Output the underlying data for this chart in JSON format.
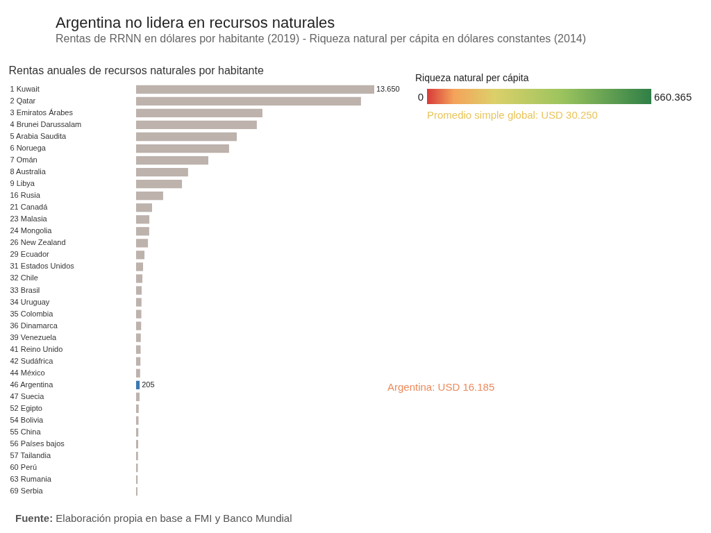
{
  "chart_data": [
    {
      "type": "bar",
      "orientation": "horizontal",
      "title": "Argentina no lidera en recursos naturales",
      "subtitle": "Rentas de RRNN en dólares por habitante (2019) - Riqueza natural per cápita en dólares constantes (2014)",
      "xlabel": "Rentas anuales de recursos naturales por habitante",
      "tick_labels": "y",
      "categories": [
        "1 Kuwait",
        "2 Qatar",
        "3 Emiratos Árabes",
        "4 Brunei Darussalam",
        "5 Arabia Saudita",
        "6 Noruega",
        "7 Omán",
        "8 Australia",
        "9 Libya",
        "16 Rusia",
        "21 Canadá",
        "23 Malasia",
        "24 Mongolia",
        "26 New Zealand",
        "29 Ecuador",
        "31 Estados Unidos",
        "32 Chile",
        "33 Brasil",
        "34 Uruguay",
        "35 Colombia",
        "36 Dinamarca",
        "39 Venezuela",
        "41 Reino Unido",
        "42 Sudáfrica",
        "44 México",
        "46 Argentina",
        "47 Suecia",
        "52 Egipto",
        "54 Bolivia",
        "55 China",
        "56 Países bajos",
        "57 Tailandia",
        "60 Perú",
        "63 Rumania",
        "69 Serbia"
      ],
      "values": [
        13650,
        12890,
        7240,
        6920,
        5770,
        5330,
        4140,
        2980,
        2630,
        1550,
        915,
        760,
        750,
        680,
        480,
        400,
        360,
        320,
        310,
        300,
        290,
        270,
        260,
        250,
        230,
        205,
        200,
        150,
        140,
        130,
        120,
        110,
        100,
        90,
        80
      ],
      "colors": [
        "#bdb2ac",
        "#bdb2ac",
        "#bdb2ac",
        "#bdb2ac",
        "#bdb2ac",
        "#bdb2ac",
        "#bdb2ac",
        "#bdb2ac",
        "#bdb2ac",
        "#bdb2ac",
        "#bdb2ac",
        "#bdb2ac",
        "#bdb2ac",
        "#bdb2ac",
        "#bdb2ac",
        "#bdb2ac",
        "#bdb2ac",
        "#bdb2ac",
        "#bdb2ac",
        "#bdb2ac",
        "#bdb2ac",
        "#bdb2ac",
        "#bdb2ac",
        "#bdb2ac",
        "#bdb2ac",
        "#3d78b0",
        "#bdb2ac",
        "#bdb2ac",
        "#bdb2ac",
        "#bdb2ac",
        "#bdb2ac",
        "#bdb2ac",
        "#bdb2ac",
        "#bdb2ac",
        "#bdb2ac"
      ],
      "value_labels": [
        "13.650",
        null,
        null,
        null,
        null,
        null,
        null,
        null,
        null,
        null,
        null,
        null,
        null,
        null,
        null,
        null,
        null,
        null,
        null,
        null,
        null,
        null,
        null,
        null,
        null,
        "205",
        null,
        null,
        null,
        null,
        null,
        null,
        null,
        null,
        null
      ],
      "annotations": [
        "Fuente: Elaboración propia en base a FMI y Banco Mundial"
      ]
    },
    {
      "type": "other",
      "clabel": "Riqueza natural per cápita",
      "annotations": [
        "0",
        "660.365",
        "Promedio simple global: USD 30.250",
        "Argentina: USD 16.185"
      ]
    }
  ]
}
